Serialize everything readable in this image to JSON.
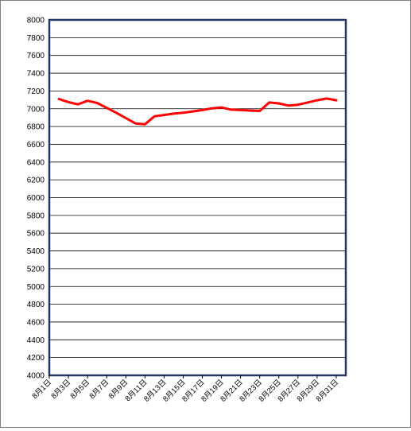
{
  "chart_data": {
    "type": "line",
    "title": "",
    "xlabel": "",
    "ylabel": "",
    "ylim": [
      4000,
      8000
    ],
    "yticks": [
      4000,
      4200,
      4400,
      4600,
      4800,
      5000,
      5200,
      5400,
      5600,
      5800,
      6000,
      6200,
      6400,
      6600,
      6800,
      7000,
      7200,
      7400,
      7600,
      7800,
      8000
    ],
    "xticklabels": [
      "8月1日",
      "8月3日",
      "8月5日",
      "8月7日",
      "8月9日",
      "8月11日",
      "8月13日",
      "8月15日",
      "8月17日",
      "8月19日",
      "8月21日",
      "8月23日",
      "8月25日",
      "8月27日",
      "8月29日",
      "8月31日"
    ],
    "grid": "horizontal",
    "legend": "none",
    "line_color": "#ff0000",
    "frame_color": "#1f3864",
    "series": [
      {
        "x": [
          "8月2日",
          "8月3日",
          "8月4日",
          "8月5日",
          "8月6日",
          "8月7日",
          "8月8日",
          "8月9日",
          "8月10日",
          "8月11日",
          "8月12日",
          "8月13日",
          "8月14日",
          "8月15日",
          "8月16日",
          "8月17日",
          "8月18日",
          "8月19日",
          "8月20日",
          "8月21日",
          "8月22日",
          "8月23日",
          "8月24日",
          "8月25日",
          "8月26日",
          "8月27日",
          "8月28日",
          "8月29日",
          "8月30日",
          "8月31日"
        ],
        "values": [
          7110,
          7075,
          7050,
          7090,
          7065,
          7010,
          6955,
          6895,
          6835,
          6825,
          6915,
          6930,
          6945,
          6955,
          6970,
          6985,
          7005,
          7015,
          6990,
          6985,
          6980,
          6975,
          7070,
          7060,
          7035,
          7045,
          7070,
          7095,
          7115,
          7095
        ]
      }
    ]
  }
}
